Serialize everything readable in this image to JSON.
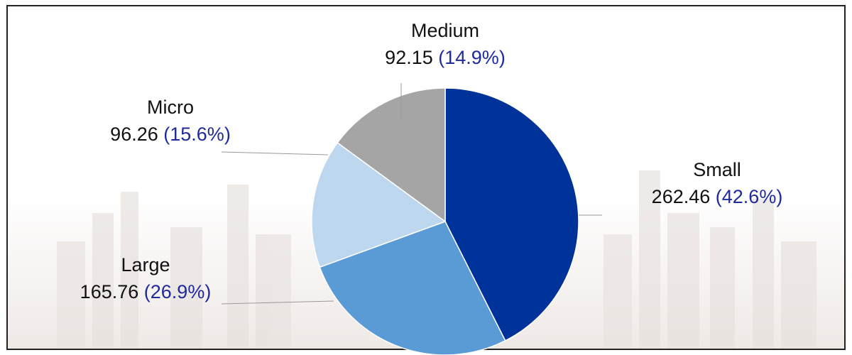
{
  "chart_data": {
    "type": "pie",
    "categories": [
      "Small",
      "Large",
      "Micro",
      "Medium"
    ],
    "values": [
      262.46,
      165.76,
      96.26,
      92.15
    ],
    "share_labels": [
      "(42.6%)",
      "(26.9%)",
      "(15.6%)",
      "(14.9%)"
    ],
    "colors": [
      "#003399",
      "#5b9bd5",
      "#bdd7ee",
      "#a5a5a5"
    ]
  }
}
